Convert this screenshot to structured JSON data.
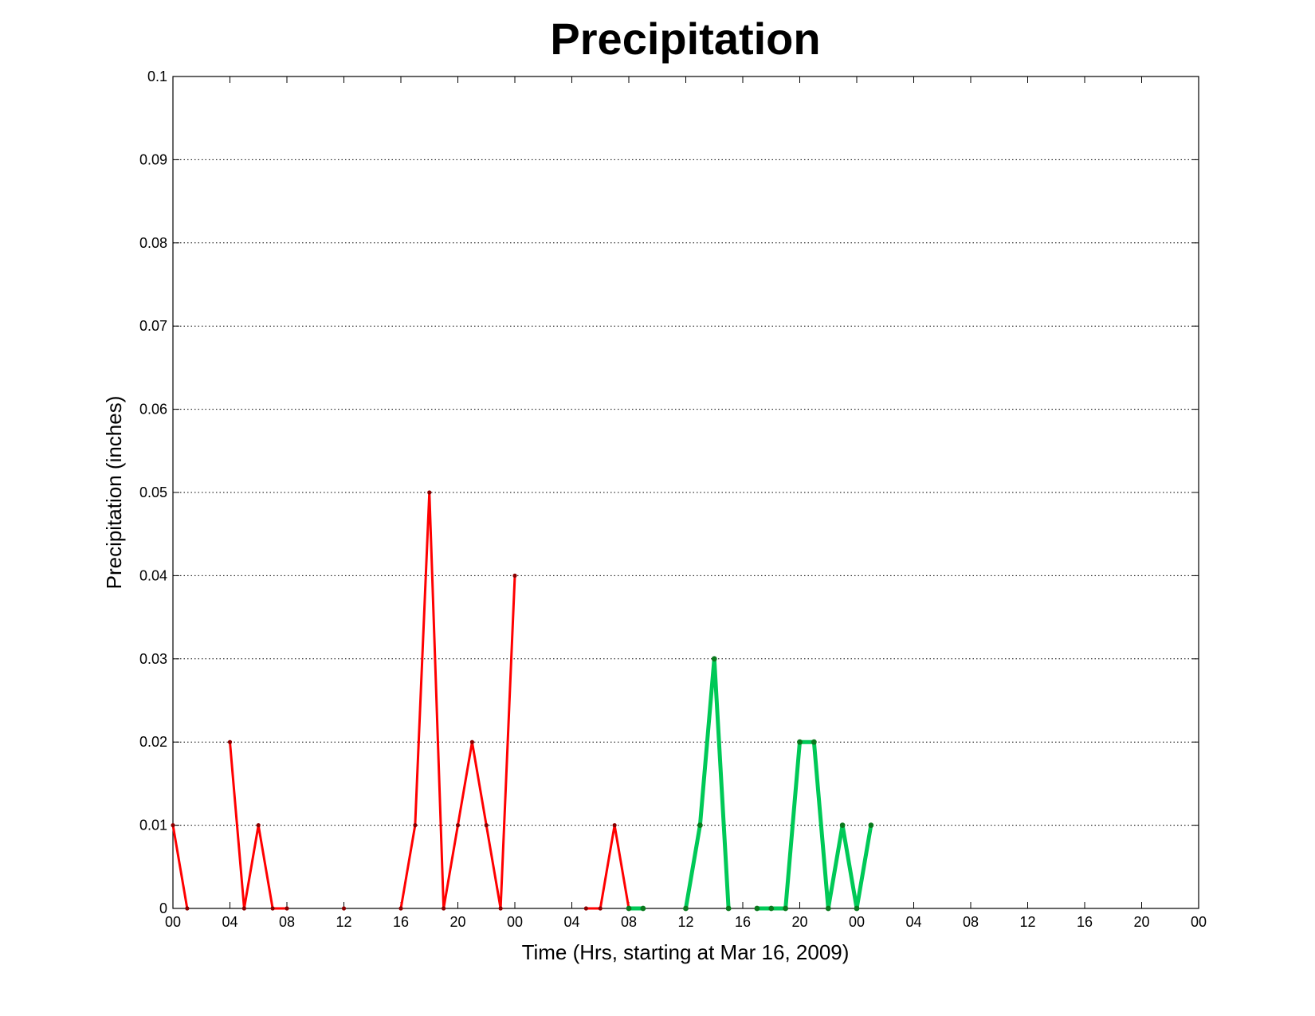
{
  "chart_data": {
    "type": "line",
    "title": "Precipitation",
    "xlabel": "Time (Hrs, starting at Mar 16, 2009)",
    "ylabel": "Precipitation (inches)",
    "ylim": [
      0,
      0.1
    ],
    "xlim": [
      0,
      72
    ],
    "grid": "horizontal dotted",
    "y_ticks": [
      "0",
      "0.01",
      "0.02",
      "0.03",
      "0.04",
      "0.05",
      "0.06",
      "0.07",
      "0.08",
      "0.09",
      "0.1"
    ],
    "x_ticks": [
      "00",
      "04",
      "08",
      "12",
      "16",
      "20",
      "00",
      "04",
      "08",
      "12",
      "16",
      "20",
      "00",
      "04",
      "08",
      "12",
      "16",
      "20",
      "00"
    ],
    "series": [
      {
        "color": "#ff0000",
        "marker_color": "#8b0000",
        "points": [
          [
            0,
            0.01
          ],
          [
            1,
            0
          ],
          null,
          [
            4,
            0.02
          ],
          [
            5,
            0
          ],
          [
            6,
            0.01
          ],
          [
            7,
            0
          ],
          [
            8,
            0
          ],
          null,
          [
            12,
            0
          ],
          null,
          [
            16,
            0
          ],
          [
            17,
            0.01
          ],
          [
            18,
            0.05
          ],
          [
            19,
            0
          ],
          [
            20,
            0.01
          ],
          [
            21,
            0.02
          ],
          [
            22,
            0.01
          ],
          [
            23,
            0
          ],
          [
            24,
            0.04
          ],
          null,
          [
            29,
            0
          ],
          [
            30,
            0
          ],
          [
            31,
            0.01
          ],
          [
            32,
            0
          ]
        ]
      },
      {
        "color": "#00c957",
        "marker_color": "#0a7a1e",
        "points": [
          [
            32,
            0
          ],
          [
            33,
            0
          ],
          null,
          [
            36,
            0
          ],
          [
            37,
            0.01
          ],
          [
            38,
            0.03
          ],
          [
            39,
            0
          ],
          null,
          [
            41,
            0
          ],
          [
            42,
            0
          ],
          [
            43,
            0
          ],
          [
            44,
            0.02
          ],
          [
            45,
            0.02
          ],
          [
            46,
            0
          ],
          [
            47,
            0.01
          ],
          [
            48,
            0
          ],
          [
            49,
            0.01
          ]
        ]
      }
    ]
  }
}
